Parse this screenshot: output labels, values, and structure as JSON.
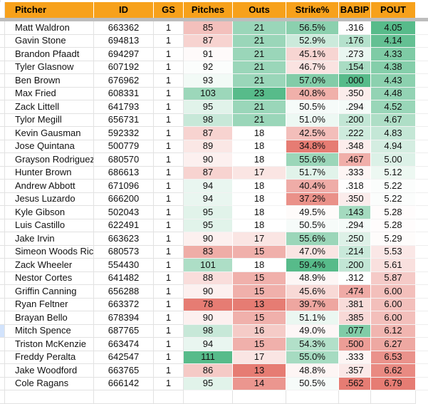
{
  "colors": {
    "header_bg": "#F7A11B",
    "header_text": "#000000",
    "scale_red": "#E67C73",
    "scale_mid": "#FFFFFF",
    "scale_green": "#57BB8A",
    "selected_row_marker": "#D2E3FC",
    "frozen_divider": "#BDBDBD"
  },
  "table": {
    "selected_row_index": 23,
    "columns": [
      {
        "key": "pitcher",
        "label": "Pitcher",
        "scale": "none",
        "align": "left"
      },
      {
        "key": "id",
        "label": "ID",
        "scale": "none",
        "align": "center"
      },
      {
        "key": "gs",
        "label": "GS",
        "scale": "none",
        "align": "center"
      },
      {
        "key": "pitches",
        "label": "Pitches",
        "scale": "normal",
        "align": "center"
      },
      {
        "key": "outs",
        "label": "Outs",
        "scale": "normal",
        "align": "center"
      },
      {
        "key": "strike",
        "label": "Strike%",
        "scale": "normal",
        "align": "center"
      },
      {
        "key": "babip",
        "label": "BABIP",
        "scale": "reverse",
        "align": "center"
      },
      {
        "key": "pout",
        "label": "POUT",
        "scale": "reverse",
        "align": "center"
      }
    ],
    "rows": [
      {
        "pitcher": "Matt Waldron",
        "id": "663362",
        "gs": "1",
        "pitches": "85",
        "outs": "21",
        "strike": "56.5%",
        "babip": ".316",
        "pout": "4.05"
      },
      {
        "pitcher": "Gavin Stone",
        "id": "694813",
        "gs": "1",
        "pitches": "87",
        "outs": "21",
        "strike": "52.9%",
        "babip": ".176",
        "pout": "4.14"
      },
      {
        "pitcher": "Brandon Pfaadt",
        "id": "694297",
        "gs": "1",
        "pitches": "91",
        "outs": "21",
        "strike": "45.1%",
        "babip": ".273",
        "pout": "4.33"
      },
      {
        "pitcher": "Tyler Glasnow",
        "id": "607192",
        "gs": "1",
        "pitches": "92",
        "outs": "21",
        "strike": "46.7%",
        "babip": ".154",
        "pout": "4.38"
      },
      {
        "pitcher": "Ben Brown",
        "id": "676962",
        "gs": "1",
        "pitches": "93",
        "outs": "21",
        "strike": "57.0%",
        "babip": ".000",
        "pout": "4.43"
      },
      {
        "pitcher": "Max Fried",
        "id": "608331",
        "gs": "1",
        "pitches": "103",
        "outs": "23",
        "strike": "40.8%",
        "babip": ".350",
        "pout": "4.48"
      },
      {
        "pitcher": "Zack Littell",
        "id": "641793",
        "gs": "1",
        "pitches": "95",
        "outs": "21",
        "strike": "50.5%",
        "babip": ".294",
        "pout": "4.52"
      },
      {
        "pitcher": "Tylor Megill",
        "id": "656731",
        "gs": "1",
        "pitches": "98",
        "outs": "21",
        "strike": "51.0%",
        "babip": ".200",
        "pout": "4.67"
      },
      {
        "pitcher": "Kevin Gausman",
        "id": "592332",
        "gs": "1",
        "pitches": "87",
        "outs": "18",
        "strike": "42.5%",
        "babip": ".222",
        "pout": "4.83"
      },
      {
        "pitcher": "Jose Quintana",
        "id": "500779",
        "gs": "1",
        "pitches": "89",
        "outs": "18",
        "strike": "34.8%",
        "babip": ".348",
        "pout": "4.94"
      },
      {
        "pitcher": "Grayson Rodriguez",
        "id": "680570",
        "gs": "1",
        "pitches": "90",
        "outs": "18",
        "strike": "55.6%",
        "babip": ".467",
        "pout": "5.00"
      },
      {
        "pitcher": "Hunter Brown",
        "id": "686613",
        "gs": "1",
        "pitches": "87",
        "outs": "17",
        "strike": "51.7%",
        "babip": ".333",
        "pout": "5.12"
      },
      {
        "pitcher": "Andrew Abbott",
        "id": "671096",
        "gs": "1",
        "pitches": "94",
        "outs": "18",
        "strike": "40.4%",
        "babip": ".318",
        "pout": "5.22"
      },
      {
        "pitcher": "Jesus Luzardo",
        "id": "666200",
        "gs": "1",
        "pitches": "94",
        "outs": "18",
        "strike": "37.2%",
        "babip": ".350",
        "pout": "5.22"
      },
      {
        "pitcher": "Kyle Gibson",
        "id": "502043",
        "gs": "1",
        "pitches": "95",
        "outs": "18",
        "strike": "49.5%",
        "babip": ".143",
        "pout": "5.28"
      },
      {
        "pitcher": "Luis Castillo",
        "id": "622491",
        "gs": "1",
        "pitches": "95",
        "outs": "18",
        "strike": "50.5%",
        "babip": ".294",
        "pout": "5.28"
      },
      {
        "pitcher": "Jake Irvin",
        "id": "663623",
        "gs": "1",
        "pitches": "90",
        "outs": "17",
        "strike": "55.6%",
        "babip": ".250",
        "pout": "5.29"
      },
      {
        "pitcher": "Simeon Woods Richardson",
        "id": "680573",
        "gs": "1",
        "pitches": "83",
        "outs": "15",
        "strike": "47.0%",
        "babip": ".214",
        "pout": "5.53"
      },
      {
        "pitcher": "Zack Wheeler",
        "id": "554430",
        "gs": "1",
        "pitches": "101",
        "outs": "18",
        "strike": "59.4%",
        "babip": ".200",
        "pout": "5.61"
      },
      {
        "pitcher": "Nestor Cortes",
        "id": "641482",
        "gs": "1",
        "pitches": "88",
        "outs": "15",
        "strike": "48.9%",
        "babip": ".312",
        "pout": "5.87"
      },
      {
        "pitcher": "Griffin Canning",
        "id": "656288",
        "gs": "1",
        "pitches": "90",
        "outs": "15",
        "strike": "45.6%",
        "babip": ".474",
        "pout": "6.00"
      },
      {
        "pitcher": "Ryan Feltner",
        "id": "663372",
        "gs": "1",
        "pitches": "78",
        "outs": "13",
        "strike": "39.7%",
        "babip": ".381",
        "pout": "6.00"
      },
      {
        "pitcher": "Brayan Bello",
        "id": "678394",
        "gs": "1",
        "pitches": "90",
        "outs": "15",
        "strike": "51.1%",
        "babip": ".385",
        "pout": "6.00"
      },
      {
        "pitcher": "Mitch Spence",
        "id": "687765",
        "gs": "1",
        "pitches": "98",
        "outs": "16",
        "strike": "49.0%",
        "babip": ".077",
        "pout": "6.12"
      },
      {
        "pitcher": "Triston McKenzie",
        "id": "663474",
        "gs": "1",
        "pitches": "94",
        "outs": "15",
        "strike": "54.3%",
        "babip": ".500",
        "pout": "6.27"
      },
      {
        "pitcher": "Freddy Peralta",
        "id": "642547",
        "gs": "1",
        "pitches": "111",
        "outs": "17",
        "strike": "55.0%",
        "babip": ".333",
        "pout": "6.53"
      },
      {
        "pitcher": "Jake Woodford",
        "id": "663765",
        "gs": "1",
        "pitches": "86",
        "outs": "13",
        "strike": "48.8%",
        "babip": ".357",
        "pout": "6.62"
      },
      {
        "pitcher": "Cole Ragans",
        "id": "666142",
        "gs": "1",
        "pitches": "95",
        "outs": "14",
        "strike": "50.5%",
        "babip": ".562",
        "pout": "6.79"
      }
    ]
  }
}
